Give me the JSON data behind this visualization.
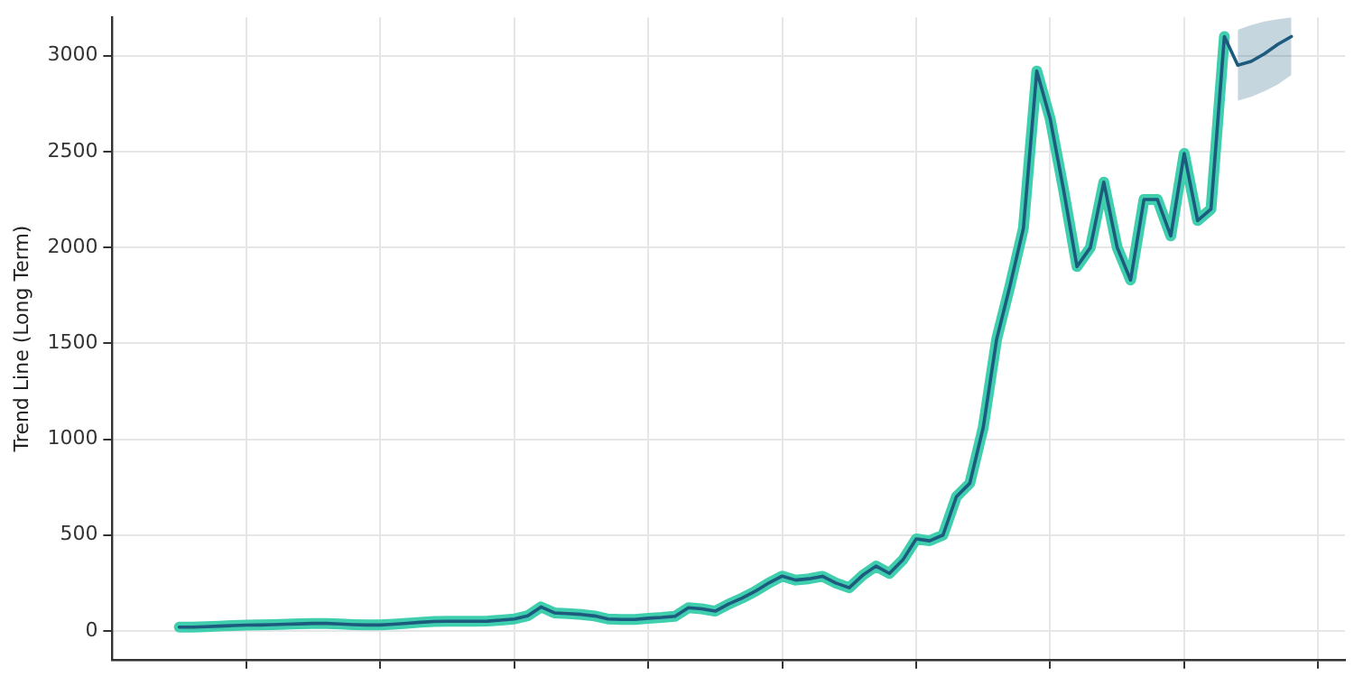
{
  "chart_data": {
    "type": "line",
    "ylabel": "Trend Line (Long Term)",
    "ylim": [
      -150,
      3200
    ],
    "categories": [
      null,
      null,
      null,
      null,
      null,
      null,
      null,
      null,
      null,
      null,
      null,
      null,
      null,
      null,
      null,
      null,
      null,
      null,
      null,
      null,
      null,
      null,
      null,
      null,
      null,
      null,
      null,
      null,
      null,
      null,
      null,
      null,
      null,
      null,
      null,
      null,
      null,
      null,
      null,
      null,
      null,
      null,
      null,
      null,
      null,
      null,
      null,
      null,
      null,
      null,
      null,
      null,
      null,
      null,
      null,
      null,
      null,
      null,
      null,
      null,
      null,
      null,
      null,
      null,
      null,
      null,
      null,
      null,
      null,
      null,
      null,
      null,
      null,
      null,
      null,
      null,
      null,
      null,
      null,
      null,
      null,
      null,
      null,
      null,
      null,
      null,
      null,
      null,
      null,
      null,
      null,
      null,
      null
    ],
    "yticks": [
      0,
      500,
      1000,
      1500,
      2000,
      2500,
      3000
    ],
    "grid": true,
    "legend": false,
    "tick_labels": "y",
    "marker": "none",
    "line_style": "solid",
    "series": [
      {
        "color": "#3fcfae",
        "values": [
          null,
          null,
          null,
          null,
          null,
          20,
          20,
          22,
          25,
          28,
          30,
          31,
          33,
          35,
          37,
          39,
          39,
          36,
          33,
          31,
          31,
          35,
          40,
          45,
          49,
          50,
          50,
          50,
          51,
          56,
          62,
          79,
          125,
          94,
          90,
          86,
          78,
          62,
          60,
          60,
          66,
          70,
          76,
          121,
          115,
          103,
          140,
          171,
          207,
          250,
          286,
          265,
          272,
          285,
          250,
          225,
          290,
          338,
          300,
          370,
          480,
          470,
          500,
          700,
          770,
          1060,
          1520,
          1800,
          2100,
          2920,
          2670,
          2300,
          1900,
          2000,
          2340,
          2000,
          1830,
          2250,
          2250,
          2060,
          2490,
          2140,
          2200,
          3100,
          null,
          null,
          null,
          null,
          null,
          null,
          null,
          null,
          null
        ]
      },
      {
        "color": "#1d5b7e",
        "values": [
          null,
          null,
          null,
          null,
          null,
          20,
          20,
          22,
          25,
          28,
          30,
          31,
          33,
          35,
          37,
          39,
          39,
          36,
          33,
          31,
          31,
          35,
          40,
          45,
          49,
          50,
          50,
          50,
          51,
          56,
          62,
          79,
          125,
          94,
          90,
          86,
          78,
          62,
          60,
          60,
          66,
          70,
          76,
          121,
          115,
          103,
          140,
          171,
          207,
          250,
          286,
          265,
          272,
          285,
          250,
          225,
          290,
          338,
          300,
          370,
          480,
          470,
          500,
          700,
          770,
          1060,
          1520,
          1800,
          2100,
          2920,
          2670,
          2300,
          1900,
          2000,
          2340,
          2000,
          1830,
          2250,
          2250,
          2060,
          2490,
          2140,
          2200,
          3100,
          2950,
          2970,
          3010,
          3060,
          3100,
          null,
          null,
          null,
          null
        ],
        "lower": [
          null,
          null,
          null,
          null,
          null,
          null,
          null,
          null,
          null,
          null,
          null,
          null,
          null,
          null,
          null,
          null,
          null,
          null,
          null,
          null,
          null,
          null,
          null,
          null,
          null,
          null,
          null,
          null,
          null,
          null,
          null,
          null,
          null,
          null,
          null,
          null,
          null,
          null,
          null,
          null,
          null,
          null,
          null,
          null,
          null,
          null,
          null,
          null,
          null,
          null,
          null,
          null,
          null,
          null,
          null,
          null,
          null,
          null,
          null,
          null,
          null,
          null,
          null,
          null,
          null,
          null,
          null,
          null,
          null,
          null,
          null,
          null,
          null,
          null,
          null,
          null,
          null,
          null,
          null,
          null,
          null,
          null,
          null,
          null,
          2765,
          2785,
          2815,
          2850,
          2900,
          null,
          null,
          null,
          null
        ],
        "upper": [
          null,
          null,
          null,
          null,
          null,
          null,
          null,
          null,
          null,
          null,
          null,
          null,
          null,
          null,
          null,
          null,
          null,
          null,
          null,
          null,
          null,
          null,
          null,
          null,
          null,
          null,
          null,
          null,
          null,
          null,
          null,
          null,
          null,
          null,
          null,
          null,
          null,
          null,
          null,
          null,
          null,
          null,
          null,
          null,
          null,
          null,
          null,
          null,
          null,
          null,
          null,
          null,
          null,
          null,
          null,
          null,
          null,
          null,
          null,
          null,
          null,
          null,
          null,
          null,
          null,
          null,
          null,
          null,
          null,
          null,
          null,
          null,
          null,
          null,
          null,
          null,
          null,
          null,
          null,
          null,
          null,
          null,
          null,
          null,
          3135,
          3160,
          3178,
          3190,
          3200,
          null,
          null,
          null,
          null
        ]
      }
    ]
  }
}
